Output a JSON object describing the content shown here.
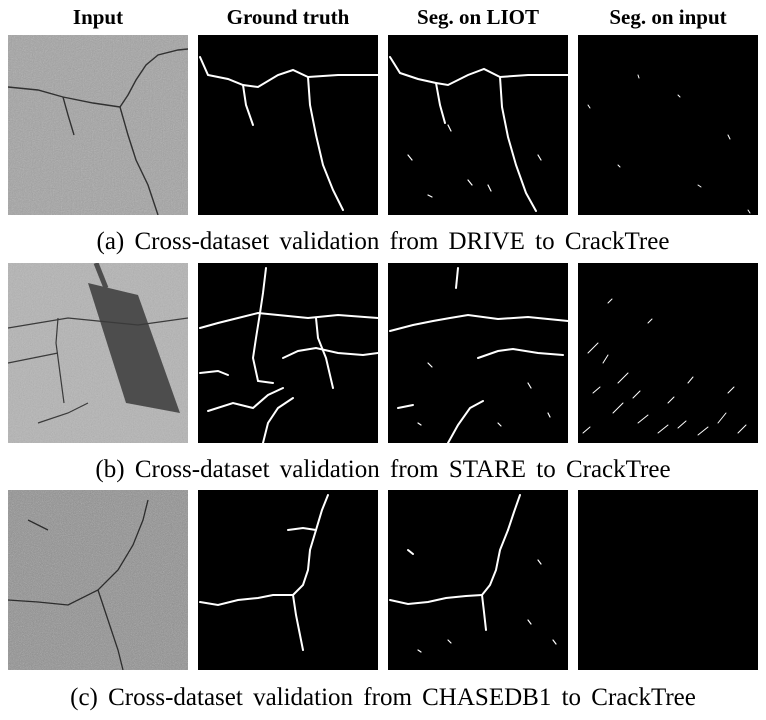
{
  "headers": [
    "Input",
    "Ground truth",
    "Seg. on LIOT",
    "Seg. on input"
  ],
  "rows": [
    {
      "caption": "(a) Cross-dataset validation from DRIVE to CrackTree"
    },
    {
      "caption": "(b) Cross-dataset validation from STARE to CrackTree"
    },
    {
      "caption": "(c) Cross-dataset validation from CHASEDB1 to CrackTree"
    }
  ],
  "colors": {
    "background": "#ffffff",
    "mask_bg": "#000000",
    "crack": "#ffffff",
    "asphalt": "#9a9a9a"
  }
}
